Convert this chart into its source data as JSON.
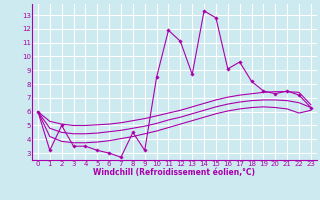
{
  "xlabel": "Windchill (Refroidissement éolien,°C)",
  "ylabel": "",
  "bg_color": "#cdeaf0",
  "grid_color": "#ffffff",
  "line_color": "#aa00aa",
  "xlim": [
    -0.5,
    23.5
  ],
  "ylim": [
    2.5,
    13.8
  ],
  "xticks": [
    0,
    1,
    2,
    3,
    4,
    5,
    6,
    7,
    8,
    9,
    10,
    11,
    12,
    13,
    14,
    15,
    16,
    17,
    18,
    19,
    20,
    21,
    22,
    23
  ],
  "yticks": [
    3,
    4,
    5,
    6,
    7,
    8,
    9,
    10,
    11,
    12,
    13
  ],
  "main_x": [
    0,
    1,
    2,
    3,
    4,
    5,
    6,
    7,
    8,
    9,
    10,
    11,
    12,
    13,
    14,
    15,
    16,
    17,
    18,
    19,
    20,
    21,
    22,
    23
  ],
  "main_y": [
    6.0,
    3.2,
    5.0,
    3.5,
    3.5,
    3.2,
    3.0,
    2.7,
    4.5,
    3.2,
    8.5,
    11.9,
    11.1,
    8.7,
    13.3,
    12.8,
    9.1,
    9.6,
    8.2,
    7.5,
    7.3,
    7.5,
    7.2,
    6.3
  ],
  "smooth1_x": [
    0,
    1,
    2,
    3,
    4,
    5,
    6,
    7,
    8,
    9,
    10,
    11,
    12,
    13,
    14,
    15,
    16,
    17,
    18,
    19,
    20,
    21,
    22,
    23
  ],
  "smooth1_y": [
    6.0,
    5.3,
    5.1,
    5.0,
    5.0,
    5.05,
    5.1,
    5.2,
    5.35,
    5.5,
    5.7,
    5.9,
    6.1,
    6.35,
    6.6,
    6.85,
    7.05,
    7.2,
    7.3,
    7.4,
    7.45,
    7.45,
    7.4,
    6.5
  ],
  "smooth2_x": [
    0,
    1,
    2,
    3,
    4,
    5,
    6,
    7,
    8,
    9,
    10,
    11,
    12,
    13,
    14,
    15,
    16,
    17,
    18,
    19,
    20,
    21,
    22,
    23
  ],
  "smooth2_y": [
    6.0,
    4.8,
    4.5,
    4.4,
    4.4,
    4.45,
    4.55,
    4.65,
    4.8,
    4.95,
    5.15,
    5.4,
    5.6,
    5.85,
    6.1,
    6.35,
    6.55,
    6.7,
    6.8,
    6.85,
    6.85,
    6.8,
    6.65,
    6.3
  ],
  "smooth3_x": [
    0,
    1,
    2,
    3,
    4,
    5,
    6,
    7,
    8,
    9,
    10,
    11,
    12,
    13,
    14,
    15,
    16,
    17,
    18,
    19,
    20,
    21,
    22,
    23
  ],
  "smooth3_y": [
    6.0,
    4.2,
    3.85,
    3.75,
    3.75,
    3.8,
    3.9,
    4.05,
    4.2,
    4.4,
    4.6,
    4.85,
    5.1,
    5.35,
    5.6,
    5.85,
    6.05,
    6.2,
    6.3,
    6.35,
    6.3,
    6.2,
    5.9,
    6.1
  ]
}
